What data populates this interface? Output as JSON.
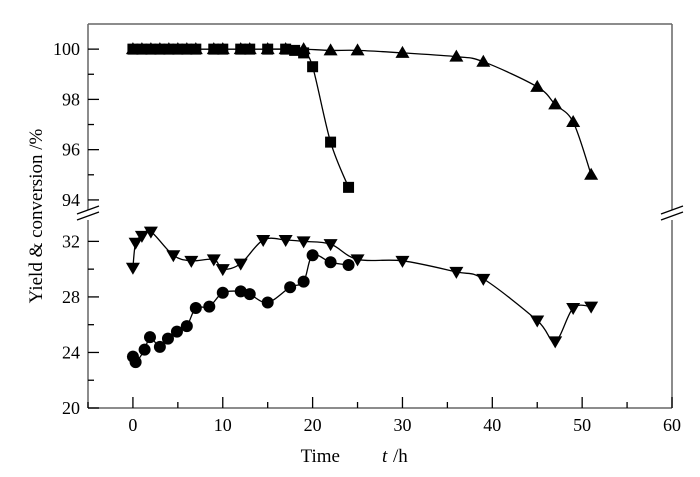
{
  "chart_data": {
    "type": "line",
    "title": "",
    "xlabel": "Time",
    "xlabel_var": "t",
    "xlabel_unit": "/h",
    "ylabel": "Yield & conversion /%",
    "xlim": [
      -5,
      60
    ],
    "xticks": [
      0,
      10,
      20,
      30,
      40,
      50,
      60
    ],
    "broken_y_axis": true,
    "y_upper": {
      "ylim": [
        93.4,
        101
      ],
      "ticks": [
        94,
        96,
        98,
        100
      ]
    },
    "y_lower": {
      "ylim": [
        20,
        33.9
      ],
      "ticks": [
        20,
        24,
        28,
        32
      ]
    },
    "grid": false,
    "legend": "none",
    "color": "#000000",
    "series": [
      {
        "marker": "square",
        "panel": "upper",
        "x": [
          0,
          1,
          2,
          3,
          4,
          5,
          6,
          7,
          9,
          10,
          12,
          13,
          15,
          17,
          18,
          19,
          20,
          22,
          24
        ],
        "y": [
          100,
          100,
          100,
          100,
          100,
          100,
          100,
          100,
          100,
          100,
          100,
          100,
          100,
          100,
          99.95,
          99.85,
          99.3,
          96.3,
          94.5
        ]
      },
      {
        "marker": "triangle-up",
        "panel": "upper",
        "x": [
          0,
          1,
          2,
          3,
          4,
          5,
          6,
          7,
          9,
          10,
          12,
          13,
          15,
          17,
          19,
          22,
          25,
          30,
          36,
          39,
          45,
          47,
          49,
          51
        ],
        "y": [
          100,
          100,
          100,
          100,
          100,
          100,
          100,
          100,
          100,
          100,
          100,
          100,
          100,
          100,
          100,
          99.95,
          99.95,
          99.85,
          99.7,
          99.5,
          98.5,
          97.8,
          97.1,
          95.0
        ]
      },
      {
        "marker": "triangle-down",
        "panel": "lower",
        "x": [
          0,
          0.3,
          1,
          2,
          4.5,
          6.5,
          9,
          10,
          12,
          14.5,
          17,
          19,
          22,
          25,
          30,
          36,
          39,
          45,
          47,
          49,
          51
        ],
        "y": [
          30.1,
          31.9,
          32.4,
          32.7,
          31.0,
          30.6,
          30.7,
          30.0,
          30.4,
          32.1,
          32.1,
          32.0,
          31.8,
          30.7,
          30.6,
          29.8,
          29.3,
          26.3,
          24.8,
          27.2,
          27.3
        ]
      },
      {
        "marker": "circle",
        "panel": "lower",
        "x": [
          0,
          0.3,
          1.3,
          1.9,
          3,
          3.9,
          4.9,
          6,
          7,
          8.5,
          10,
          12,
          13,
          15,
          17.5,
          19,
          20,
          22,
          24
        ],
        "y": [
          23.7,
          23.3,
          24.2,
          25.1,
          24.4,
          25.0,
          25.5,
          25.9,
          27.2,
          27.3,
          28.3,
          28.4,
          28.2,
          27.6,
          28.7,
          29.1,
          31.0,
          30.5,
          30.3
        ]
      }
    ]
  }
}
